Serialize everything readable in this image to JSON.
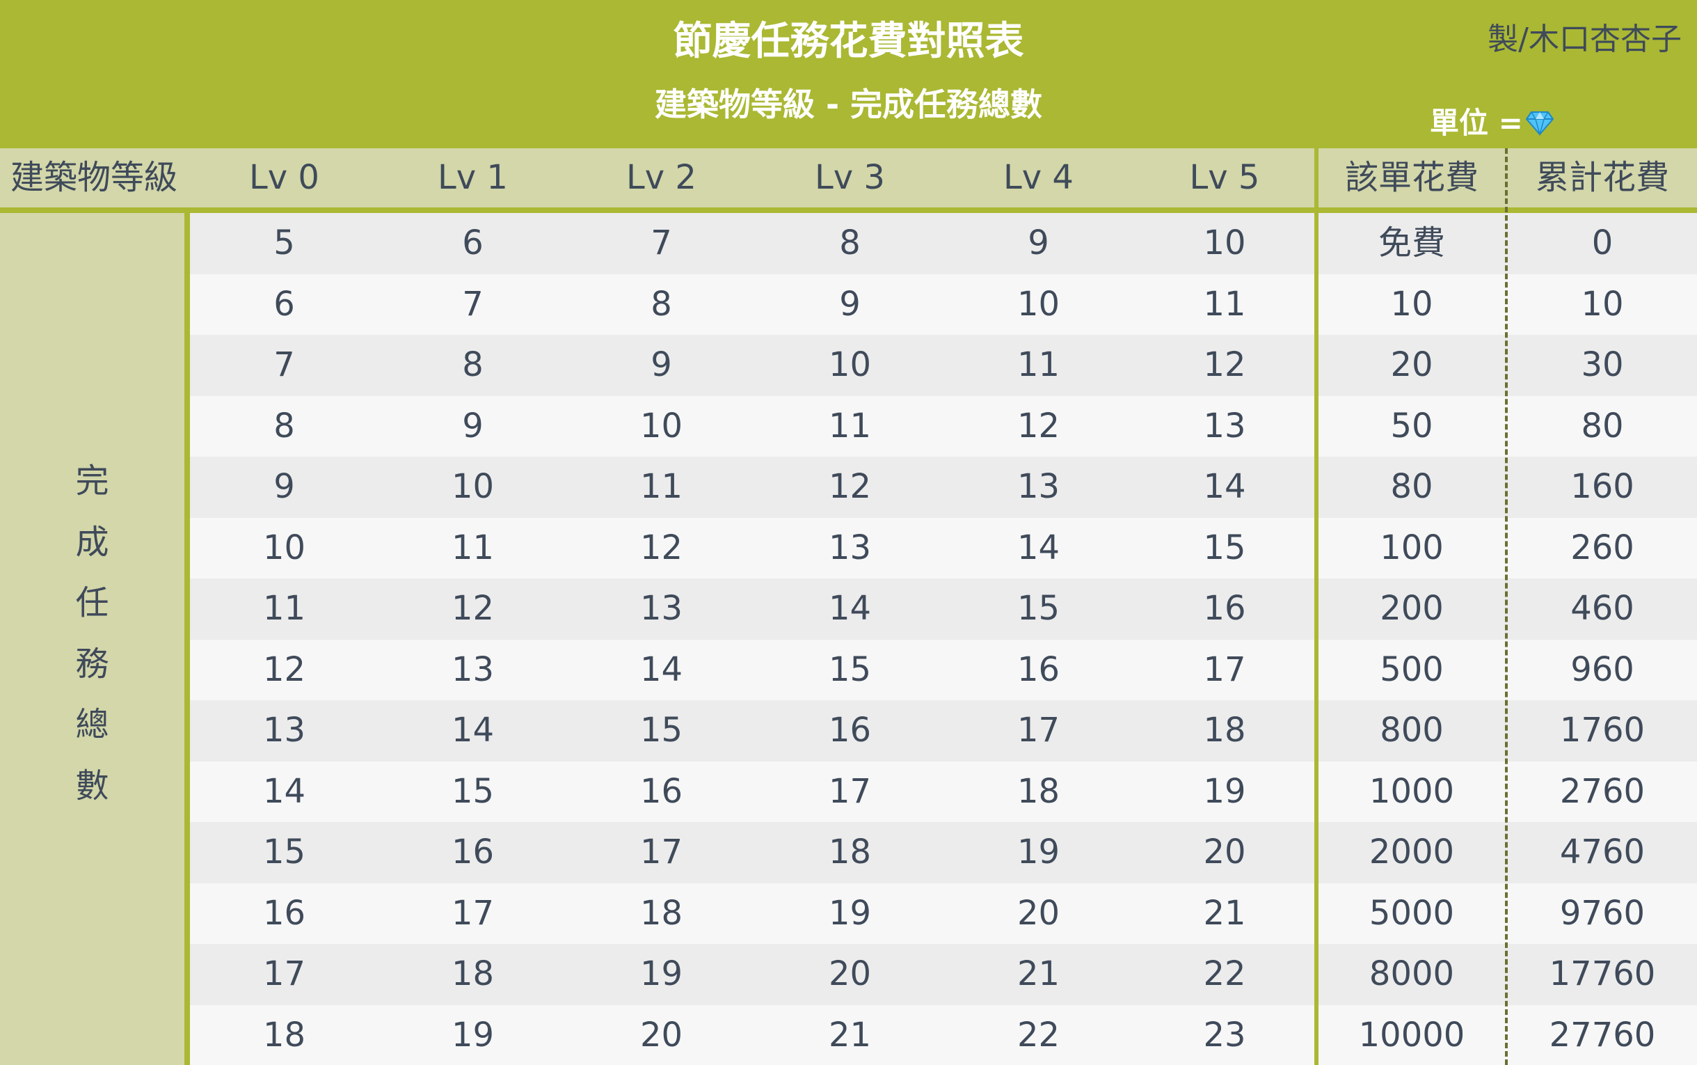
{
  "header": {
    "title": "節慶任務花費對照表",
    "subtitle": "建築物等級 - 完成任務總數",
    "credit": "製/木口杏杏子",
    "unit_label": "單位 =",
    "unit_icon": "gem-icon",
    "colors": {
      "header_bg": "#aab833",
      "subheader_bg": "#d3d7a9",
      "text": "#3f4a5a",
      "gem": "#4fc3f7"
    }
  },
  "table": {
    "corner_label": "建築物等級",
    "side_label": "完成任務總數",
    "columns": [
      "Lv 0",
      "Lv 1",
      "Lv 2",
      "Lv 3",
      "Lv 4",
      "Lv 5",
      "該單花費",
      "累計花費"
    ],
    "rows": [
      [
        "5",
        "6",
        "7",
        "8",
        "9",
        "10",
        "免費",
        "0"
      ],
      [
        "6",
        "7",
        "8",
        "9",
        "10",
        "11",
        "10",
        "10"
      ],
      [
        "7",
        "8",
        "9",
        "10",
        "11",
        "12",
        "20",
        "30"
      ],
      [
        "8",
        "9",
        "10",
        "11",
        "12",
        "13",
        "50",
        "80"
      ],
      [
        "9",
        "10",
        "11",
        "12",
        "13",
        "14",
        "80",
        "160"
      ],
      [
        "10",
        "11",
        "12",
        "13",
        "14",
        "15",
        "100",
        "260"
      ],
      [
        "11",
        "12",
        "13",
        "14",
        "15",
        "16",
        "200",
        "460"
      ],
      [
        "12",
        "13",
        "14",
        "15",
        "16",
        "17",
        "500",
        "960"
      ],
      [
        "13",
        "14",
        "15",
        "16",
        "17",
        "18",
        "800",
        "1760"
      ],
      [
        "14",
        "15",
        "16",
        "17",
        "18",
        "19",
        "1000",
        "2760"
      ],
      [
        "15",
        "16",
        "17",
        "18",
        "19",
        "20",
        "2000",
        "4760"
      ],
      [
        "16",
        "17",
        "18",
        "19",
        "20",
        "21",
        "5000",
        "9760"
      ],
      [
        "17",
        "18",
        "19",
        "20",
        "21",
        "22",
        "8000",
        "17760"
      ],
      [
        "18",
        "19",
        "20",
        "21",
        "22",
        "23",
        "10000",
        "27760"
      ]
    ]
  }
}
